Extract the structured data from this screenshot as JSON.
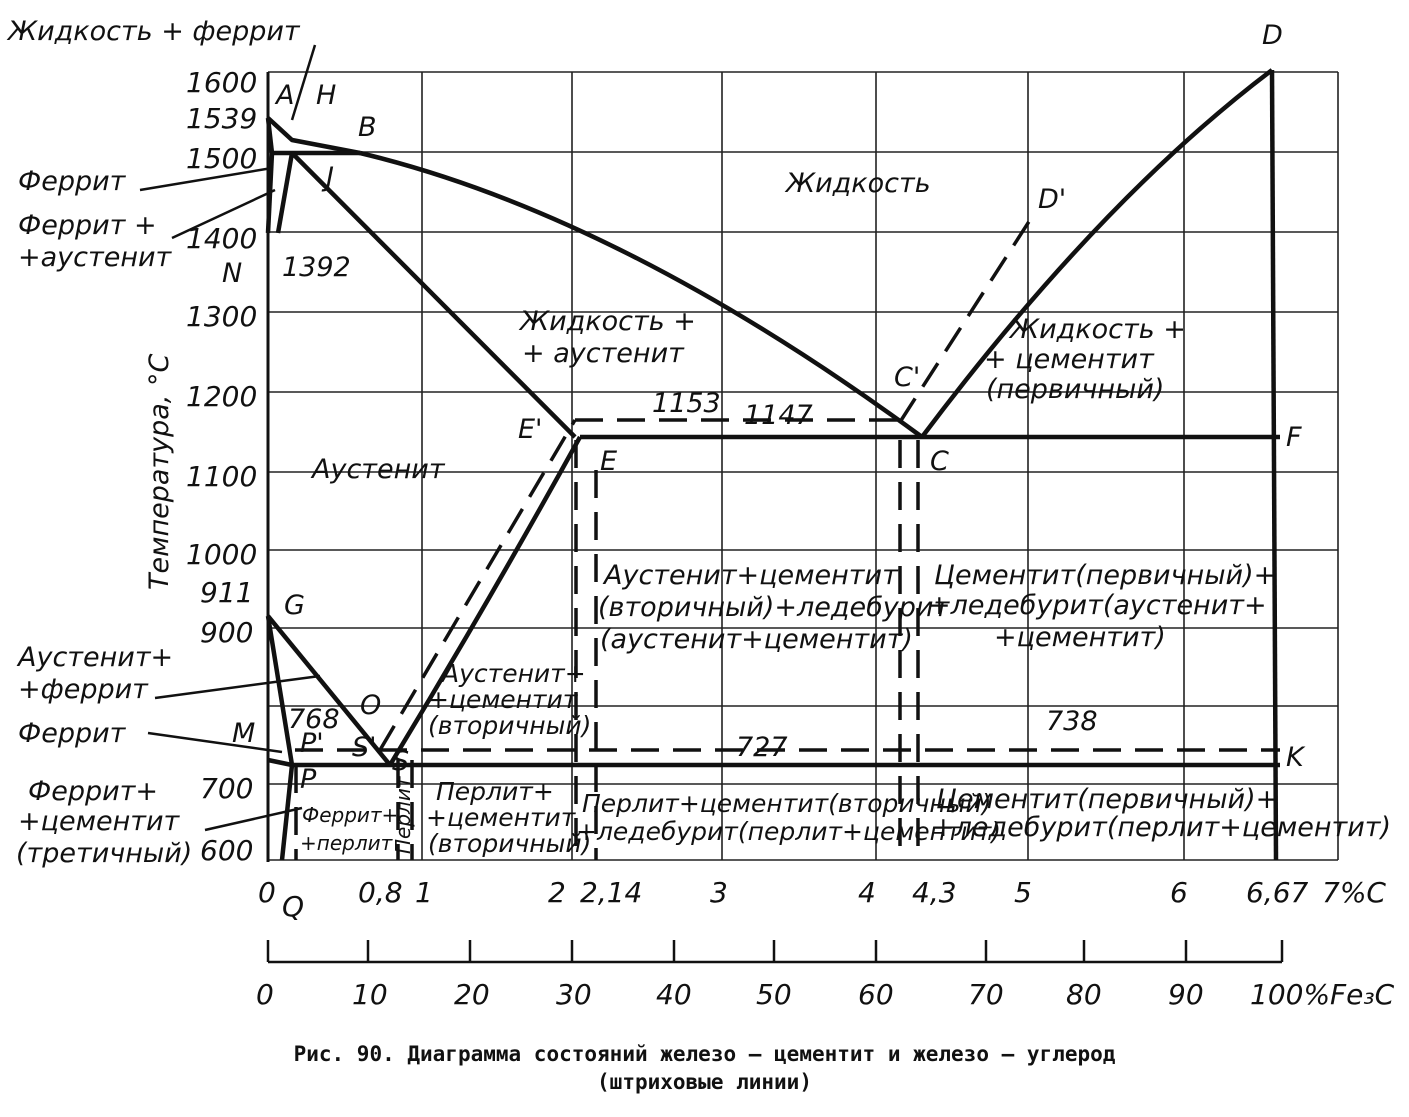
{
  "y_ticks": [
    "1600",
    "1539",
    "1500",
    "1400",
    "1300",
    "1200",
    "1100",
    "1000",
    "911",
    "900",
    "700",
    "600"
  ],
  "y_axis_label": "Температура, °С",
  "x_ticks_carbon": [
    "0",
    "0,8",
    "1",
    "2",
    "2,14",
    "3",
    "4",
    "4,3",
    "5",
    "6",
    "6,67",
    "7%С"
  ],
  "x_tick_q": "Q",
  "x_ticks_fe3c": [
    "0",
    "10",
    "20",
    "30",
    "40",
    "50",
    "60",
    "70",
    "80",
    "90",
    "100%Fe₃C"
  ],
  "points": {
    "A": "A",
    "H": "H",
    "B": "B",
    "J": "J",
    "N": "N",
    "G": "G",
    "P": "P",
    "P_prime": "P'",
    "S": "S",
    "S_prime": "S'",
    "O": "O",
    "M": "M",
    "E": "E",
    "E_prime": "E'",
    "C": "C",
    "C_prime": "C'",
    "D": "D",
    "D_prime": "D'",
    "F": "F",
    "K": "K"
  },
  "temps": {
    "t1392": "1392",
    "t1153": "1153",
    "t1147": "1147",
    "t768": "768",
    "t727": "727",
    "t738": "738"
  },
  "regions": {
    "liquid_ferrite": "Жидкость + феррит",
    "ferrite_top": "Феррит",
    "ferrite_austenite_1": "Феррит +",
    "ferrite_austenite_2": "+аустенит",
    "liquid": "Жидкость",
    "liquid_austenite_1": "Жидкость +",
    "liquid_austenite_2": "+ аустенит",
    "liquid_cementite_1": "Жидкость +",
    "liquid_cementite_2": "+ цементит",
    "liquid_cementite_3": "(первичный)",
    "austenite": "Аустенит",
    "aus_cem_led_1": "Аустенит+цементит",
    "aus_cem_led_2": "(вторичный)+ледебурит",
    "aus_cem_led_3": "(аустенит+цементит)",
    "cem_led_1": "Цементит(первичный)+",
    "cem_led_2": "+ледебурит(аустенит+",
    "cem_led_3": "+цементит)",
    "aus_cem_1": "Аустенит+",
    "aus_cem_2": "+цементит",
    "aus_cem_3": "(вторичный)",
    "aus_fer_1": "Аустенит+",
    "aus_fer_2": "+феррит",
    "ferrite_low": "Феррит",
    "fer_cem_1": "Феррит+",
    "fer_cem_2": "+цементит",
    "fer_cem_3": "(третичный)",
    "fer_perl_1": "Феррит+",
    "fer_perl_2": "+перлит",
    "perlit": "Перлит",
    "perl_cem_1": "Перлит+",
    "perl_cem_2": "+цементит",
    "perl_cem_3": "(вторичный)",
    "perl_cem_led_1": "Перлит+цементит(вторичный)",
    "perl_cem_led_2": "+ледебурит(перлит+цементит)",
    "cem_led_low_1": "Цементит(первичный)+",
    "cem_led_low_2": "+ледебурит(перлит+цементит)"
  },
  "caption_line1": "Рис. 90. Диаграмма состояний железо — цементит и железо — углерод",
  "caption_line2": "(штриховые линии)"
}
